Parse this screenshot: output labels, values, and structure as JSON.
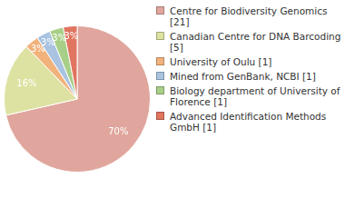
{
  "chart_data": {
    "type": "pie",
    "categories": [
      "Centre for Biodiversity Genomics [21]",
      "Canadian Centre for DNA Barcoding [5]",
      "University of Oulu [1]",
      "Mined from GenBank, NCBI [1]",
      "Biology department of University of Florence [1]",
      "Advanced Identification Methods GmbH [1]"
    ],
    "values": [
      70,
      16,
      3,
      3,
      3,
      3
    ],
    "value_labels": [
      "70%",
      "16%",
      "3%",
      "3%",
      "3%",
      "3%"
    ],
    "colors": [
      "#e0a69d",
      "#dde2a2",
      "#f2b27c",
      "#a9c3e0",
      "#a8cf87",
      "#e07560"
    ],
    "data_labels": true,
    "legend": "right"
  }
}
